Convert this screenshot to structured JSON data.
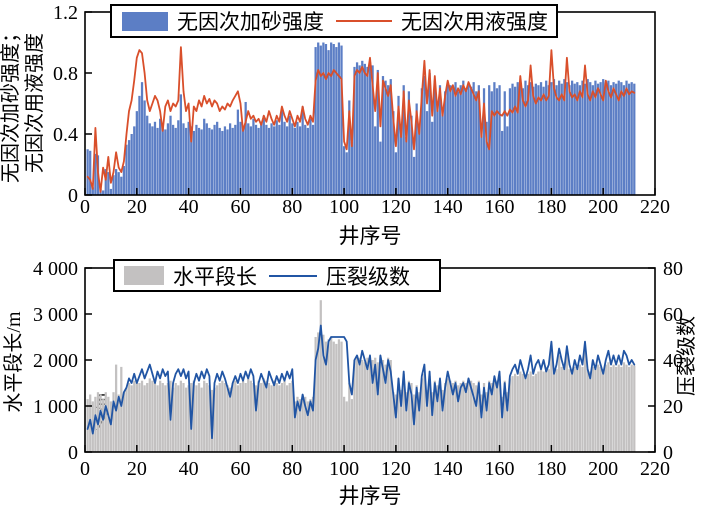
{
  "figure_title": "",
  "colors": {
    "sand_bar": "#5C7EC5",
    "fluid_line": "#D94F2B",
    "length_bar": "#C3C1C1",
    "stage_line": "#2155A4",
    "axis": "#000000",
    "background": "#ffffff"
  },
  "chart_data": [
    {
      "type": "bar",
      "subtype": "bar+line overlay",
      "xlabel": "井序号",
      "ylabel_line1": "无因次加砂强度；",
      "ylabel_line2": "无因次用液强度",
      "xlim": [
        0,
        220
      ],
      "ylim": [
        0,
        1.2
      ],
      "x_ticks": [
        0,
        20,
        40,
        60,
        80,
        100,
        120,
        140,
        160,
        180,
        200,
        220
      ],
      "y_tick_labels": [
        "0",
        "0.4",
        "0.8",
        "1.2"
      ],
      "y_tick_values": [
        0,
        0.4,
        0.8,
        1.2
      ],
      "grid": false,
      "legend_position": "upper center inside",
      "legend": {
        "bar_label": "无因次加砂强度",
        "line_label": "无因次用液强度"
      },
      "x_start": 1,
      "x_step": 1,
      "series": [
        {
          "name": "无因次加砂强度",
          "style": "bar",
          "color": "#5C7EC5",
          "values": [
            0.3,
            0.29,
            0.05,
            0.27,
            0.26,
            0.04,
            0.03,
            0.17,
            0.15,
            0.04,
            0.13,
            0.17,
            0.15,
            0.12,
            0.19,
            0.33,
            0.36,
            0.4,
            0.45,
            0.55,
            0.65,
            0.74,
            0.62,
            0.52,
            0.47,
            0.45,
            0.48,
            0.44,
            0.5,
            0.46,
            0.43,
            0.47,
            0.52,
            0.46,
            0.44,
            0.49,
            0.66,
            0.47,
            0.44,
            0.48,
            0.45,
            0.42,
            0.46,
            0.44,
            0.43,
            0.5,
            0.47,
            0.44,
            0.43,
            0.46,
            0.48,
            0.44,
            0.42,
            0.45,
            0.43,
            0.47,
            0.44,
            0.46,
            0.56,
            0.48,
            0.45,
            0.61,
            0.47,
            0.45,
            0.5,
            0.46,
            0.44,
            0.48,
            0.52,
            0.46,
            0.44,
            0.47,
            0.45,
            0.49,
            0.46,
            0.56,
            0.48,
            0.45,
            0.52,
            0.47,
            0.44,
            0.48,
            0.45,
            0.58,
            0.46,
            0.44,
            0.5,
            0.46,
            0.97,
            1.0,
            0.98,
            1.0,
            0.99,
            0.95,
            1.0,
            0.99,
            0.97,
            1.0,
            0.98,
            0.32,
            0.28,
            0.62,
            0.35,
            0.84,
            0.87,
            0.85,
            0.88,
            0.86,
            0.84,
            0.87,
            0.85,
            0.45,
            0.82,
            0.35,
            0.78,
            0.75,
            0.72,
            0.76,
            0.55,
            0.28,
            0.65,
            0.45,
            0.72,
            0.38,
            0.68,
            0.52,
            0.25,
            0.6,
            0.45,
            0.7,
            0.78,
            0.55,
            0.8,
            0.48,
            0.75,
            0.6,
            0.72,
            0.55,
            0.68,
            0.74,
            0.72,
            0.7,
            0.74,
            0.68,
            0.72,
            0.75,
            0.7,
            0.73,
            0.71,
            0.74,
            0.68,
            0.72,
            0.45,
            0.7,
            0.48,
            0.72,
            0.68,
            0.74,
            0.7,
            0.72,
            0.42,
            0.68,
            0.45,
            0.7,
            0.73,
            0.71,
            0.74,
            0.72,
            0.7,
            0.75,
            0.72,
            0.74,
            0.71,
            0.73,
            0.72,
            0.74,
            0.71,
            0.75,
            0.72,
            0.74,
            0.76,
            0.72,
            0.75,
            0.73,
            0.76,
            0.74,
            0.72,
            0.75,
            0.73,
            0.74,
            0.72,
            0.75,
            0.73,
            0.76,
            0.74,
            0.72,
            0.75,
            0.73,
            0.74,
            0.76,
            0.73,
            0.75,
            0.72,
            0.74,
            0.73,
            0.75,
            0.74,
            0.72,
            0.75,
            0.73,
            0.74,
            0.73
          ]
        },
        {
          "name": "无因次用液强度",
          "style": "line",
          "color": "#D94F2B",
          "values": [
            0.12,
            0.1,
            0.04,
            0.44,
            0.15,
            0.02,
            0.18,
            0.1,
            0.25,
            0.08,
            0.15,
            0.28,
            0.18,
            0.15,
            0.22,
            0.4,
            0.55,
            0.62,
            0.75,
            0.9,
            0.95,
            0.93,
            0.8,
            0.62,
            0.55,
            0.6,
            0.65,
            0.62,
            0.55,
            0.42,
            0.58,
            0.62,
            0.55,
            0.6,
            0.58,
            0.62,
            0.97,
            0.68,
            0.55,
            0.6,
            0.35,
            0.58,
            0.55,
            0.62,
            0.58,
            0.65,
            0.6,
            0.63,
            0.58,
            0.62,
            0.6,
            0.55,
            0.58,
            0.56,
            0.6,
            0.58,
            0.62,
            0.65,
            0.68,
            0.6,
            0.42,
            0.48,
            0.55,
            0.5,
            0.52,
            0.48,
            0.5,
            0.46,
            0.52,
            0.48,
            0.55,
            0.5,
            0.46,
            0.52,
            0.48,
            0.58,
            0.52,
            0.48,
            0.55,
            0.5,
            0.45,
            0.52,
            0.48,
            0.58,
            0.5,
            0.46,
            0.52,
            0.48,
            0.75,
            0.82,
            0.78,
            0.8,
            0.76,
            0.8,
            0.78,
            0.82,
            0.8,
            0.78,
            0.76,
            0.35,
            0.3,
            0.55,
            0.32,
            0.78,
            0.82,
            0.8,
            0.84,
            0.8,
            0.78,
            0.9,
            0.72,
            0.55,
            0.8,
            0.45,
            0.75,
            0.7,
            0.65,
            0.72,
            0.5,
            0.32,
            0.58,
            0.38,
            0.68,
            0.35,
            0.62,
            0.48,
            0.3,
            0.55,
            0.4,
            0.65,
            0.88,
            0.6,
            0.82,
            0.52,
            0.78,
            0.55,
            0.7,
            0.52,
            0.65,
            0.75,
            0.68,
            0.72,
            0.65,
            0.7,
            0.66,
            0.72,
            0.68,
            0.74,
            0.7,
            0.66,
            0.62,
            0.68,
            0.38,
            0.6,
            0.35,
            0.3,
            0.55,
            0.52,
            0.55,
            0.53,
            0.52,
            0.55,
            0.52,
            0.56,
            0.54,
            0.58,
            0.54,
            0.78,
            0.62,
            0.58,
            0.62,
            0.85,
            0.65,
            0.6,
            0.64,
            0.62,
            0.66,
            0.62,
            0.65,
            0.95,
            0.7,
            0.64,
            0.62,
            0.66,
            0.62,
            0.9,
            0.68,
            0.64,
            0.66,
            0.62,
            0.68,
            0.64,
            0.85,
            0.66,
            0.62,
            0.68,
            0.64,
            0.7,
            0.66,
            0.62,
            0.75,
            0.68,
            0.64,
            0.7,
            0.66,
            0.62,
            0.68,
            0.65,
            0.7,
            0.66,
            0.68,
            0.67
          ]
        }
      ]
    },
    {
      "type": "bar",
      "subtype": "bar+line dual axis",
      "xlabel": "井序号",
      "ylabel_left": "水平段长/m",
      "ylabel_right": "压裂级数",
      "xlim": [
        0,
        220
      ],
      "ylim_left": [
        0,
        4000
      ],
      "ylim_right": [
        0,
        80
      ],
      "x_ticks": [
        0,
        20,
        40,
        60,
        80,
        100,
        120,
        140,
        160,
        180,
        200,
        220
      ],
      "y_tick_labels_left": [
        "0",
        "1 000",
        "2 000",
        "3 000",
        "4 000"
      ],
      "y_tick_values_left": [
        0,
        1000,
        2000,
        3000,
        4000
      ],
      "y_tick_labels_right": [
        "0",
        "20",
        "40",
        "60",
        "80"
      ],
      "y_tick_values_right": [
        0,
        20,
        40,
        60,
        80
      ],
      "grid": false,
      "legend_position": "upper left inside",
      "legend": {
        "bar_label": "水平段长",
        "line_label": "压裂级数"
      },
      "annotation": {
        "text": "/m",
        "rotation": -90,
        "x_well": 9,
        "y_value": 1100
      },
      "x_start": 1,
      "x_step": 1,
      "series": [
        {
          "name": "水平段长",
          "style": "bar",
          "axis": "left",
          "color": "#C3C1C1",
          "values": [
            1150,
            1250,
            1100,
            1200,
            1300,
            1250,
            1150,
            1300,
            1200,
            1100,
            1300,
            1900,
            1250,
            1850,
            1300,
            1400,
            1500,
            1450,
            1550,
            1500,
            1500,
            1550,
            1450,
            1500,
            1600,
            1550,
            1500,
            1450,
            1550,
            1500,
            1450,
            1500,
            1550,
            1400,
            1500,
            1450,
            1550,
            1500,
            1400,
            1450,
            1500,
            1550,
            1450,
            1500,
            1400,
            1550,
            1500,
            1450,
            1350,
            1400,
            1450,
            1500,
            1550,
            1500,
            1450,
            1400,
            1500,
            1550,
            1450,
            1500,
            1550,
            1500,
            1600,
            1550,
            1500,
            1450,
            1550,
            1500,
            1600,
            1550,
            1500,
            1450,
            1550,
            1500,
            1450,
            1500,
            1550,
            1450,
            1500,
            1550,
            1100,
            1200,
            1150,
            1250,
            1200,
            1100,
            1150,
            1200,
            2500,
            2600,
            3300,
            2550,
            2400,
            2450,
            2500,
            2400,
            2350,
            2450,
            2400,
            1200,
            1100,
            1500,
            1150,
            2000,
            2100,
            2050,
            2000,
            1950,
            2050,
            2000,
            2000,
            2050,
            1950,
            2100,
            2000,
            1900,
            2050,
            2000,
            1300,
            1250,
            1600,
            1350,
            1700,
            1300,
            1550,
            1500,
            1250,
            1450,
            1300,
            1600,
            1700,
            1350,
            1650,
            1300,
            1550,
            1450,
            1550,
            1350,
            1500,
            1600,
            1550,
            1500,
            1550,
            1450,
            1500,
            1550,
            1500,
            1600,
            1550,
            1500,
            1450,
            1550,
            1250,
            1500,
            1300,
            1550,
            1500,
            1600,
            1550,
            1650,
            1200,
            1550,
            1300,
            1600,
            1650,
            1700,
            1650,
            1750,
            1700,
            1650,
            1700,
            1750,
            1650,
            1700,
            1750,
            1800,
            1750,
            1850,
            1800,
            2200,
            1750,
            1800,
            2100,
            1850,
            1800,
            2150,
            1800,
            1750,
            1850,
            1800,
            1900,
            1850,
            2200,
            1800,
            1750,
            1850,
            1800,
            1900,
            1850,
            1800,
            1900,
            1950,
            1850,
            1900,
            1850,
            1900,
            1850,
            1950,
            1900,
            1850,
            1900,
            1880
          ]
        },
        {
          "name": "压裂级数",
          "style": "line",
          "axis": "right",
          "color": "#2155A4",
          "values": [
            10,
            14,
            8,
            16,
            12,
            18,
            14,
            20,
            16,
            12,
            22,
            18,
            24,
            20,
            26,
            28,
            32,
            30,
            34,
            30,
            33,
            36,
            32,
            35,
            38,
            34,
            30,
            35,
            32,
            36,
            33,
            35,
            14,
            30,
            34,
            36,
            33,
            36,
            32,
            35,
            10,
            30,
            34,
            31,
            35,
            32,
            36,
            33,
            6,
            30,
            34,
            31,
            35,
            32,
            28,
            24,
            30,
            33,
            30,
            34,
            31,
            35,
            32,
            36,
            33,
            18,
            30,
            34,
            31,
            28,
            35,
            32,
            29,
            33,
            30,
            34,
            31,
            35,
            32,
            36,
            15,
            22,
            18,
            25,
            20,
            16,
            22,
            18,
            40,
            45,
            55,
            42,
            38,
            48,
            50,
            50,
            50,
            50,
            50,
            50,
            48,
            30,
            25,
            40,
            42,
            38,
            44,
            40,
            36,
            42,
            30,
            38,
            25,
            42,
            36,
            30,
            40,
            35,
            25,
            15,
            32,
            20,
            35,
            18,
            30,
            25,
            12,
            28,
            18,
            33,
            38,
            20,
            35,
            16,
            30,
            22,
            32,
            18,
            28,
            35,
            30,
            25,
            30,
            22,
            28,
            30,
            26,
            32,
            28,
            24,
            20,
            30,
            15,
            28,
            18,
            30,
            25,
            33,
            28,
            35,
            15,
            30,
            18,
            33,
            36,
            38,
            34,
            40,
            36,
            32,
            36,
            42,
            34,
            38,
            40,
            36,
            40,
            35,
            38,
            48,
            34,
            38,
            45,
            40,
            36,
            46,
            38,
            34,
            40,
            36,
            42,
            38,
            48,
            36,
            32,
            40,
            36,
            42,
            38,
            34,
            40,
            44,
            38,
            42,
            38,
            42,
            38,
            44,
            42,
            38,
            40,
            38
          ]
        }
      ]
    }
  ]
}
